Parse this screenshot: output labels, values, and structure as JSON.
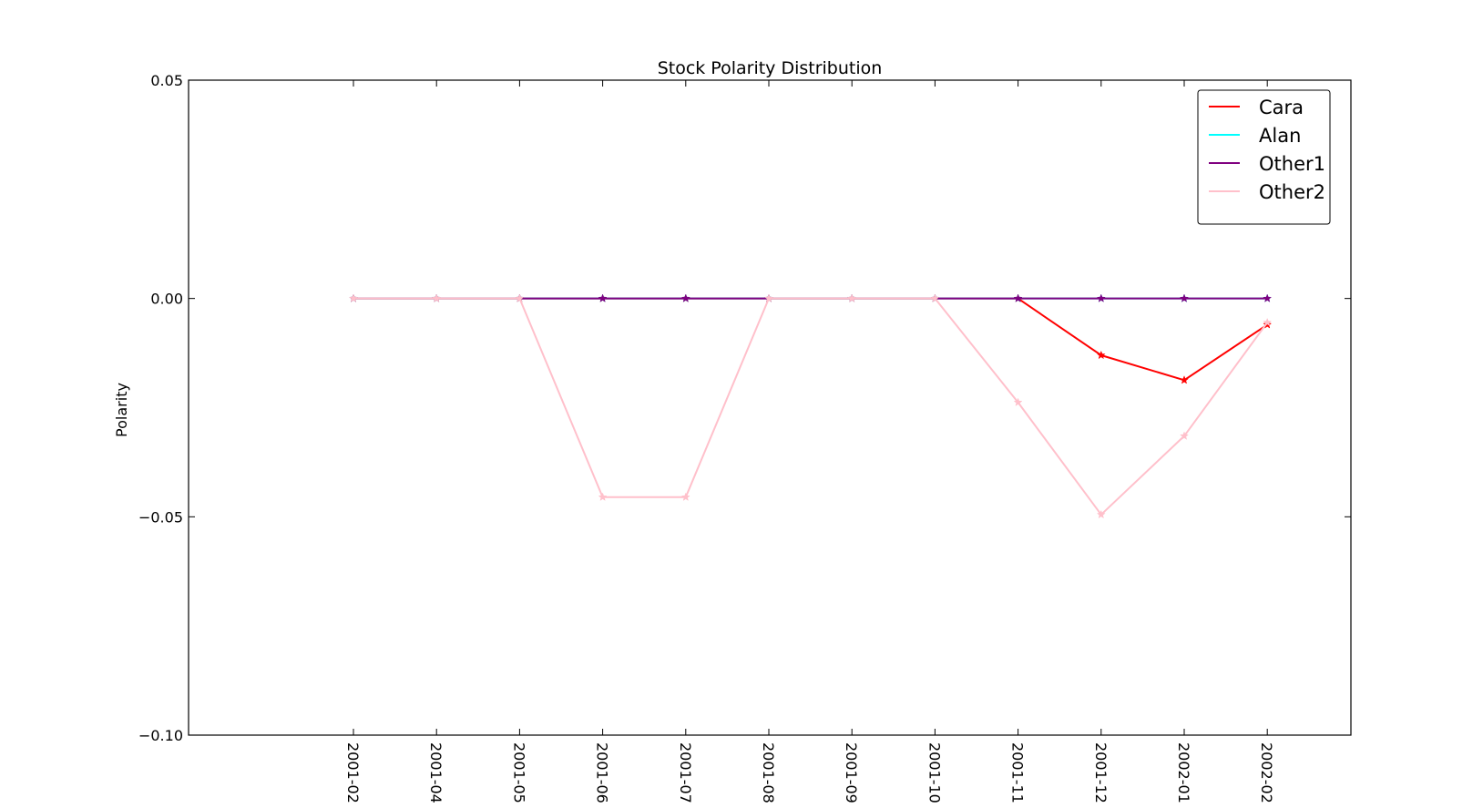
{
  "chart_data": {
    "type": "line",
    "title": "Stock Polarity Distribution",
    "xlabel": "",
    "ylabel": "Polarity",
    "categories": [
      "2001-02",
      "2001-04",
      "2001-05",
      "2001-06",
      "2001-07",
      "2001-08",
      "2001-09",
      "2001-10",
      "2001-11",
      "2001-12",
      "2002-01",
      "2002-02"
    ],
    "ylim": [
      -0.1,
      0.05
    ],
    "yticks": [
      0.05,
      0.0,
      -0.05,
      -0.1
    ],
    "ytick_labels": [
      "0.05",
      "0.00",
      "−0.05",
      "−0.10"
    ],
    "grid": false,
    "legend_position": "top-right",
    "series": [
      {
        "name": "Cara",
        "color": "#ff0000",
        "marker": "star",
        "values": [
          0,
          0,
          0,
          0,
          0,
          0,
          0,
          0,
          0,
          -0.013,
          -0.0187,
          -0.006
        ]
      },
      {
        "name": "Alan",
        "color": "#00ffff",
        "marker": "star",
        "values": [
          0,
          0,
          0,
          0,
          0,
          0,
          0,
          0,
          0,
          0,
          0,
          0
        ]
      },
      {
        "name": "Other1",
        "color": "#800080",
        "marker": "star",
        "values": [
          0,
          0,
          0,
          0,
          0,
          0,
          0,
          0,
          0,
          0,
          0,
          0
        ]
      },
      {
        "name": "Other2",
        "color": "#ffc0cb",
        "marker": "star",
        "values": [
          0,
          0,
          0,
          -0.0455,
          -0.0455,
          0,
          0,
          0,
          -0.0238,
          -0.0495,
          -0.0315,
          -0.0055
        ]
      }
    ]
  }
}
